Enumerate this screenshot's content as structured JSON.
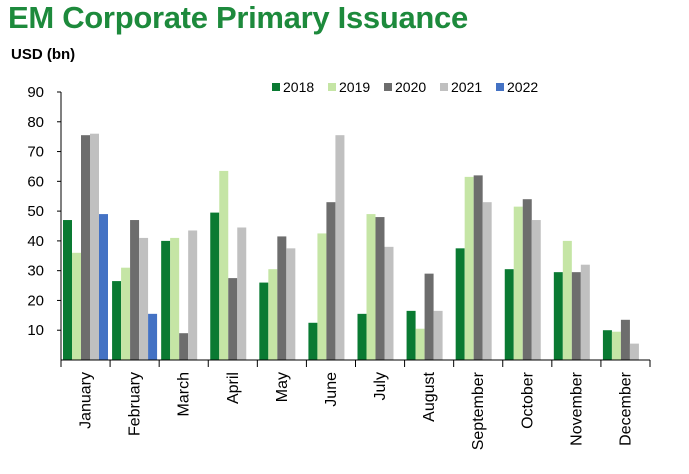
{
  "chart_data": {
    "type": "bar",
    "title": "EM Corporate Primary Issuance",
    "ylabel": "USD (bn)",
    "xlabel": "",
    "ylim": [
      0,
      90
    ],
    "yticks": [
      10,
      20,
      30,
      40,
      50,
      60,
      70,
      80,
      90
    ],
    "categories": [
      "January",
      "February",
      "March",
      "April",
      "May",
      "June",
      "July",
      "August",
      "September",
      "October",
      "November",
      "December"
    ],
    "series": [
      {
        "name": "2018",
        "color": "#0a7a32",
        "values": [
          47,
          26.5,
          40,
          49.5,
          26,
          12.5,
          15.5,
          16.5,
          37.5,
          30.5,
          29.5,
          10
        ]
      },
      {
        "name": "2019",
        "color": "#c5e5a5",
        "values": [
          36,
          31,
          41,
          63.5,
          30.5,
          42.5,
          49,
          10.5,
          61.5,
          51.5,
          40,
          9.5
        ]
      },
      {
        "name": "2020",
        "color": "#6d6d6d",
        "values": [
          75.5,
          47,
          9,
          27.5,
          41.5,
          53,
          48,
          29,
          62,
          54,
          29.5,
          13.5
        ]
      },
      {
        "name": "2021",
        "color": "#c0c0c0",
        "values": [
          76,
          41,
          43.5,
          44.5,
          37.5,
          75.5,
          38,
          16.5,
          53,
          47,
          32,
          5.5
        ]
      },
      {
        "name": "2022",
        "color": "#4472c4",
        "values": [
          49,
          15.5,
          null,
          null,
          null,
          null,
          null,
          null,
          null,
          null,
          null,
          null
        ]
      }
    ],
    "legend_position": "top-right"
  }
}
